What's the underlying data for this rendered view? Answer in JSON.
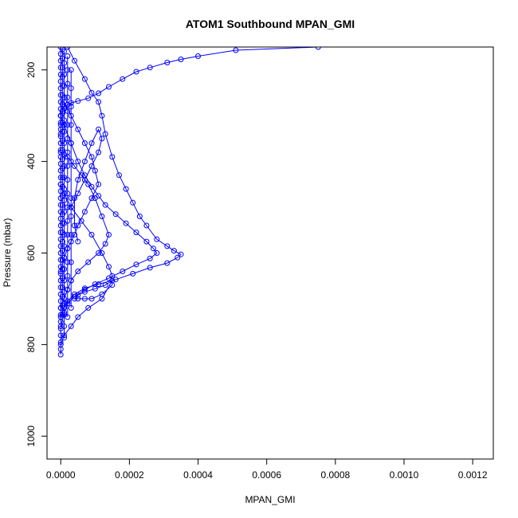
{
  "chart_data": {
    "type": "scatter",
    "title": "ATOM1 Southbound MPAN_GMI",
    "xlabel": "MPAN_GMI",
    "ylabel": "Pressure (mbar)",
    "xlim": [
      -4e-05,
      0.00126
    ],
    "ylim": [
      1050,
      150
    ],
    "y_reversed": true,
    "grid": false,
    "color": "#0000ff",
    "x_ticks": [
      0,
      0.0002,
      0.0004,
      0.0006,
      0.0008,
      0.001,
      0.0012
    ],
    "x_tick_labels": [
      "0.0000",
      "0.0002",
      "0.0004",
      "0.0006",
      "0.0008",
      "0.0010",
      "0.0012"
    ],
    "y_ticks": [
      200,
      400,
      600,
      800,
      1000
    ],
    "y_tick_labels": [
      "200",
      "400",
      "600",
      "800",
      "1000"
    ],
    "series": [
      {
        "x": [
          0.00075,
          0.00051,
          0.0004,
          0.00035,
          0.00031,
          0.00026,
          0.00022,
          0.00018,
          0.00014,
          0.00011,
          8e-05,
          5e-05,
          3e-05,
          2e-05,
          1e-05,
          5e-06,
          0.0,
          0.0,
          0.0
        ],
        "y": [
          150,
          157,
          170,
          177,
          184,
          195,
          204,
          220,
          237,
          251,
          262,
          268,
          272,
          276,
          280,
          290,
          300,
          320,
          340
        ]
      },
      {
        "x": [
          2e-05,
          4e-05,
          7e-05,
          9e-05,
          0.00011,
          0.00012,
          0.00013,
          0.00015,
          0.00017,
          0.00019,
          0.00021,
          0.00023,
          0.00025,
          0.00028,
          0.00031,
          0.00033,
          0.00035,
          0.00034,
          0.00031,
          0.00026,
          0.00021,
          0.00016,
          0.00011,
          7e-05,
          4e-05,
          2e-05,
          1e-05,
          0.0
        ],
        "y": [
          150,
          180,
          220,
          250,
          270,
          300,
          340,
          390,
          430,
          460,
          490,
          520,
          540,
          570,
          585,
          595,
          603,
          610,
          622,
          632,
          645,
          658,
          668,
          677,
          690,
          705,
          720,
          740
        ]
      },
      {
        "x": [
          0.0,
          1e-05,
          3e-05,
          5e-05,
          7e-05,
          9e-05,
          0.00011,
          0.00013,
          0.00016,
          0.00019,
          0.00022,
          0.00025,
          0.00027,
          0.00028,
          0.00026,
          0.00022,
          0.00018,
          0.00014,
          0.0001,
          7e-05,
          4e-05,
          2e-05,
          1e-05,
          0.0
        ],
        "y": [
          300,
          320,
          360,
          400,
          430,
          455,
          475,
          495,
          515,
          535,
          555,
          575,
          590,
          600,
          612,
          625,
          640,
          655,
          668,
          680,
          695,
          710,
          730,
          760
        ]
      },
      {
        "x": [
          0.0,
          2e-05,
          4e-05,
          6e-05,
          8e-05,
          0.0001,
          0.00012,
          0.00014,
          0.00013,
          0.00011,
          8e-05,
          5e-05,
          3e-05,
          2e-05,
          1e-05,
          0.0
        ],
        "y": [
          380,
          390,
          410,
          430,
          450,
          480,
          520,
          560,
          580,
          600,
          620,
          640,
          660,
          680,
          700,
          720
        ]
      },
      {
        "x": [
          1e-05,
          3e-05,
          5e-05,
          7e-05,
          9e-05,
          0.0001,
          0.00011,
          9e-05,
          7e-05,
          5e-05,
          4e-05,
          3e-05,
          2e-05,
          1e-05,
          0.0
        ],
        "y": [
          270,
          300,
          330,
          360,
          390,
          420,
          450,
          480,
          510,
          540,
          560,
          575,
          590,
          610,
          640
        ]
      },
      {
        "x": [
          0.0,
          1e-05,
          3e-05,
          6e-05,
          9e-05,
          0.00012,
          0.00014,
          0.00015,
          0.00015,
          0.00012,
          9e-05,
          7e-05,
          5e-05,
          4e-05,
          5e-05,
          7e-05,
          0.0001,
          0.00013,
          0.00015,
          0.00012,
          8e-05,
          5e-05,
          3e-05,
          1e-05,
          0.0
        ],
        "y": [
          450,
          470,
          500,
          530,
          560,
          600,
          630,
          650,
          670,
          690,
          700,
          700,
          700,
          700,
          692,
          685,
          678,
          670,
          660,
          700,
          720,
          740,
          760,
          780,
          800
        ]
      },
      {
        "x": [
          3e-05,
          5e-05,
          7e-05,
          9e-05,
          0.00011,
          0.00012,
          0.00011,
          9e-05,
          7e-05,
          5e-05,
          4e-05,
          4e-05,
          5e-05
        ],
        "y": [
          500,
          470,
          440,
          410,
          380,
          350,
          330,
          360,
          400,
          440,
          480,
          540,
          575
        ]
      },
      {
        "x": [
          0.0,
          0.0,
          0.0,
          0.0,
          0.0,
          0.0,
          0.0,
          0.0,
          0.0,
          0.0,
          0.0,
          0.0,
          0.0,
          0.0,
          0.0,
          0.0,
          0.0,
          0.0,
          0.0,
          0.0,
          0.0,
          0.0,
          0.0,
          0.0,
          0.0,
          0.0,
          0.0,
          0.0,
          0.0,
          0.0,
          0.0,
          0.0,
          0.0,
          0.0,
          0.0,
          0.0,
          0.0,
          0.0,
          0.0,
          0.0,
          0.0,
          0.0,
          0.0,
          0.0,
          0.0,
          0.0
        ],
        "y": [
          150,
          165,
          180,
          195,
          210,
          225,
          240,
          255,
          270,
          285,
          300,
          315,
          330,
          345,
          360,
          375,
          390,
          405,
          420,
          435,
          450,
          465,
          480,
          495,
          510,
          525,
          540,
          555,
          570,
          585,
          600,
          615,
          630,
          645,
          660,
          675,
          690,
          705,
          720,
          735,
          750,
          765,
          780,
          795,
          810,
          822
        ]
      },
      {
        "x": [
          5e-06,
          5e-06,
          5e-06,
          5e-06,
          5e-06,
          5e-06,
          5e-06,
          5e-06,
          5e-06,
          5e-06,
          5e-06,
          5e-06,
          5e-06,
          5e-06,
          5e-06,
          5e-06,
          5e-06,
          5e-06,
          5e-06,
          5e-06,
          5e-06,
          5e-06,
          5e-06,
          5e-06,
          5e-06,
          5e-06,
          5e-06,
          5e-06,
          5e-06,
          5e-06
        ],
        "y": [
          155,
          175,
          195,
          215,
          235,
          255,
          275,
          295,
          315,
          335,
          355,
          375,
          395,
          415,
          435,
          455,
          475,
          495,
          515,
          535,
          555,
          575,
          595,
          615,
          635,
          655,
          675,
          695,
          715,
          735
        ]
      },
      {
        "x": [
          1e-05,
          1e-05,
          1e-05,
          1e-05,
          1e-05,
          1e-05,
          1e-05,
          1e-05,
          1e-05,
          1e-05,
          1e-05,
          1e-05,
          1e-05,
          1e-05,
          1e-05,
          1e-05,
          1e-05,
          1e-05,
          1e-05,
          1e-05,
          1e-05,
          1e-05,
          1e-05,
          1e-05,
          1e-05,
          1e-05
        ],
        "y": [
          160,
          185,
          210,
          235,
          260,
          285,
          310,
          335,
          360,
          385,
          410,
          435,
          460,
          485,
          510,
          535,
          560,
          585,
          610,
          635,
          660,
          685,
          710,
          735,
          760,
          785
        ]
      },
      {
        "x": [
          2e-05,
          2e-05,
          2e-05,
          2e-05,
          2e-05,
          2e-05,
          2e-05,
          2e-05,
          2e-05,
          2e-05,
          2e-05,
          2e-05,
          2e-05,
          2e-05,
          2e-05,
          2e-05,
          2e-05,
          2e-05,
          2e-05,
          2e-05
        ],
        "y": [
          170,
          200,
          230,
          260,
          290,
          320,
          350,
          380,
          410,
          440,
          470,
          500,
          530,
          560,
          590,
          620,
          650,
          680,
          710,
          740
        ]
      },
      {
        "x": [
          3e-05,
          3e-05,
          3e-05,
          3e-05,
          3e-05,
          3e-05,
          3e-05,
          3e-05,
          3e-05,
          3e-05,
          3e-05,
          3e-05
        ],
        "y": [
          200,
          240,
          280,
          320,
          360,
          400,
          480,
          520,
          560,
          620,
          660,
          720
        ]
      }
    ]
  }
}
